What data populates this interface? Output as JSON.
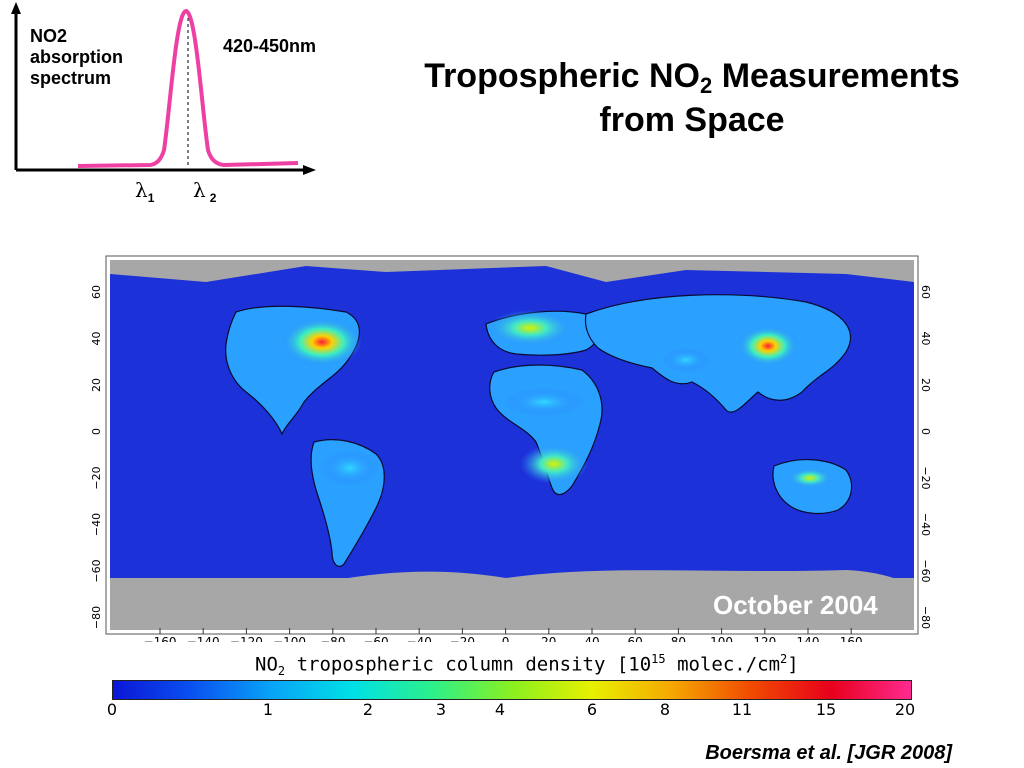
{
  "spectrum": {
    "title": "NO2\nabsorption\nspectrum",
    "title_lines": [
      "NO2",
      "absorption",
      "spectrum"
    ],
    "band": "420-450nm",
    "lambda1": "λ",
    "lambda1_sub": "1",
    "lambda2": "λ",
    "lambda2_sub": "2",
    "curve_color": "#ee3fa3"
  },
  "title": {
    "line1_a": "Tropospheric NO",
    "line1_sub": "2",
    "line1_b": " Measurements",
    "line2": "from Space"
  },
  "map": {
    "month": "October 2004",
    "lon_ticks": [
      "−160",
      "−140",
      "−120",
      "−100",
      "−80",
      "−60",
      "−40",
      "−20",
      "0",
      "20",
      "40",
      "60",
      "80",
      "100",
      "120",
      "140",
      "160"
    ],
    "lat_ticks": [
      "60",
      "40",
      "20",
      "0",
      "−20",
      "−40",
      "−60",
      "−80"
    ],
    "ocean_color": "#1c31d8",
    "land_nodata_color": "#a7a7a7"
  },
  "colorbar": {
    "label_a": "NO",
    "label_sub": "2",
    "label_b": " tropospheric column density [10",
    "label_sup": "15",
    "label_c": " molec./cm",
    "label_sup2": "2",
    "label_d": "]",
    "ticks": [
      "0",
      "1",
      "2",
      "3",
      "4",
      "6",
      "8",
      "11",
      "15",
      "20"
    ],
    "colors": [
      "#0b16d6",
      "#0a52f0",
      "#08a4f6",
      "#00e0e6",
      "#2cf08a",
      "#8af020",
      "#e8f000",
      "#f5a800",
      "#f04a00",
      "#e8001c",
      "#ff2a90"
    ]
  },
  "citation": "Boersma et al. [JGR 2008]"
}
